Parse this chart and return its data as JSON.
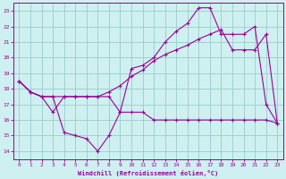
{
  "xlabel": "Windchill (Refroidissement éolien,°C)",
  "bg_color": "#cff0f0",
  "line_color": "#990099",
  "grid_color": "#99cccc",
  "xlim": [
    -0.5,
    23.5
  ],
  "ylim": [
    13.5,
    23.5
  ],
  "yticks": [
    14,
    15,
    16,
    17,
    18,
    19,
    20,
    21,
    22,
    23
  ],
  "xticks": [
    0,
    1,
    2,
    3,
    4,
    5,
    6,
    7,
    8,
    9,
    10,
    11,
    12,
    13,
    14,
    15,
    16,
    17,
    18,
    19,
    20,
    21,
    22,
    23
  ],
  "series1_x": [
    0,
    1,
    2,
    3,
    4,
    5,
    6,
    7,
    8,
    9,
    10,
    11,
    12,
    13,
    14,
    15,
    16,
    17,
    18,
    19,
    20,
    21,
    22,
    23
  ],
  "series1_y": [
    18.5,
    17.8,
    17.5,
    17.5,
    15.2,
    15.0,
    14.8,
    14.0,
    15.0,
    16.5,
    16.5,
    16.5,
    16.0,
    16.0,
    16.0,
    16.0,
    16.0,
    16.0,
    16.0,
    16.0,
    16.0,
    16.0,
    16.0,
    15.8
  ],
  "series2_x": [
    0,
    1,
    2,
    3,
    4,
    5,
    6,
    7,
    8,
    9,
    10,
    11,
    12,
    13,
    14,
    15,
    16,
    17,
    18,
    19,
    20,
    21,
    22,
    23
  ],
  "series2_y": [
    18.5,
    17.8,
    17.5,
    17.5,
    17.5,
    17.5,
    17.5,
    17.5,
    17.8,
    18.2,
    18.8,
    19.2,
    19.8,
    20.2,
    20.5,
    20.8,
    21.2,
    21.5,
    21.8,
    20.5,
    20.5,
    20.5,
    21.5,
    15.8
  ],
  "series3_x": [
    0,
    1,
    2,
    3,
    4,
    5,
    6,
    7,
    8,
    9,
    10,
    11,
    12,
    13,
    14,
    15,
    16,
    17,
    18,
    19,
    20,
    21,
    22,
    23
  ],
  "series3_y": [
    18.5,
    17.8,
    17.5,
    16.5,
    17.5,
    17.5,
    17.5,
    17.5,
    17.5,
    16.5,
    19.3,
    19.5,
    20.0,
    21.0,
    21.7,
    22.2,
    23.2,
    23.2,
    21.5,
    21.5,
    21.5,
    22.0,
    17.0,
    15.8
  ]
}
